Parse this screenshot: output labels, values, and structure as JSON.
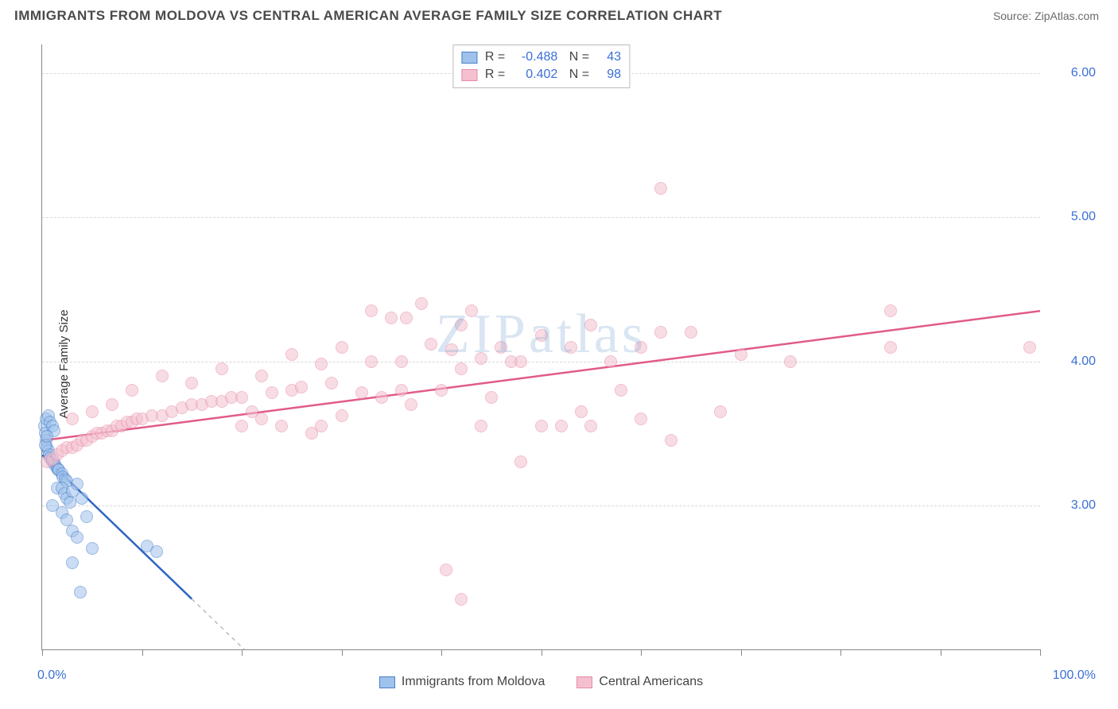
{
  "title": "IMMIGRANTS FROM MOLDOVA VS CENTRAL AMERICAN AVERAGE FAMILY SIZE CORRELATION CHART",
  "source": "Source: ZipAtlas.com",
  "watermark": "ZIPatlas",
  "ylabel": "Average Family Size",
  "chart": {
    "type": "scatter",
    "xlim": [
      0,
      100
    ],
    "ylim": [
      2.0,
      6.2
    ],
    "xtick_positions": [
      0,
      10,
      20,
      30,
      40,
      50,
      60,
      70,
      80,
      90,
      100
    ],
    "ytick_labels": [
      "3.00",
      "4.00",
      "5.00",
      "6.00"
    ],
    "ytick_values": [
      3.0,
      4.0,
      5.0,
      6.0
    ],
    "x_axis_label_left": "0.0%",
    "x_axis_label_right": "100.0%",
    "grid_color": "#d8d8d8",
    "axis_color": "#888888",
    "label_color": "#3b6fd6",
    "background_color": "#ffffff",
    "marker_radius": 8,
    "marker_opacity": 0.55,
    "series": [
      {
        "name": "Immigrants from Moldova",
        "fill": "#9fc2ec",
        "stroke": "#4a7fc8",
        "trend_color": "#2f66c4",
        "R": "-0.488",
        "N": "43",
        "trend": {
          "x1": 0,
          "y1": 3.35,
          "x2": 15,
          "y2": 2.35,
          "dash_to_x": 24,
          "dash_to_y": 1.75
        },
        "points": [
          [
            0.2,
            3.55
          ],
          [
            0.3,
            3.5
          ],
          [
            0.4,
            3.45
          ],
          [
            0.5,
            3.4
          ],
          [
            0.6,
            3.38
          ],
          [
            0.7,
            3.35
          ],
          [
            0.8,
            3.33
          ],
          [
            1.0,
            3.3
          ],
          [
            1.2,
            3.3
          ],
          [
            1.3,
            3.28
          ],
          [
            1.5,
            3.26
          ],
          [
            1.6,
            3.25
          ],
          [
            1.7,
            3.25
          ],
          [
            2.0,
            3.22
          ],
          [
            2.1,
            3.2
          ],
          [
            2.3,
            3.18
          ],
          [
            2.5,
            3.17
          ],
          [
            0.4,
            3.6
          ],
          [
            0.6,
            3.62
          ],
          [
            0.8,
            3.58
          ],
          [
            1.0,
            3.55
          ],
          [
            1.2,
            3.52
          ],
          [
            0.3,
            3.42
          ],
          [
            0.5,
            3.48
          ],
          [
            1.5,
            3.12
          ],
          [
            2.0,
            3.12
          ],
          [
            2.2,
            3.08
          ],
          [
            2.5,
            3.05
          ],
          [
            2.8,
            3.02
          ],
          [
            3.0,
            3.1
          ],
          [
            3.5,
            3.15
          ],
          [
            4.0,
            3.05
          ],
          [
            1.0,
            3.0
          ],
          [
            2.0,
            2.95
          ],
          [
            2.5,
            2.9
          ],
          [
            3.0,
            2.82
          ],
          [
            3.5,
            2.78
          ],
          [
            4.5,
            2.92
          ],
          [
            5.0,
            2.7
          ],
          [
            3.0,
            2.6
          ],
          [
            10.5,
            2.72
          ],
          [
            11.5,
            2.68
          ],
          [
            3.8,
            2.4
          ]
        ]
      },
      {
        "name": "Central Americans",
        "fill": "#f4c0cf",
        "stroke": "#e68ba6",
        "trend_color": "#e15a8a",
        "R": "0.402",
        "N": "98",
        "trend": {
          "x1": 0,
          "y1": 3.45,
          "x2": 100,
          "y2": 4.35
        },
        "points": [
          [
            0.5,
            3.3
          ],
          [
            1.0,
            3.32
          ],
          [
            1.5,
            3.35
          ],
          [
            2.0,
            3.38
          ],
          [
            2.5,
            3.4
          ],
          [
            3.0,
            3.4
          ],
          [
            3.5,
            3.42
          ],
          [
            4.0,
            3.45
          ],
          [
            4.5,
            3.45
          ],
          [
            5.0,
            3.48
          ],
          [
            5.5,
            3.5
          ],
          [
            6.0,
            3.5
          ],
          [
            6.5,
            3.52
          ],
          [
            7.0,
            3.52
          ],
          [
            7.5,
            3.55
          ],
          [
            8.0,
            3.55
          ],
          [
            8.5,
            3.58
          ],
          [
            9.0,
            3.58
          ],
          [
            9.5,
            3.6
          ],
          [
            10.0,
            3.6
          ],
          [
            11.0,
            3.62
          ],
          [
            12.0,
            3.62
          ],
          [
            13.0,
            3.65
          ],
          [
            14.0,
            3.68
          ],
          [
            15.0,
            3.7
          ],
          [
            16.0,
            3.7
          ],
          [
            17.0,
            3.72
          ],
          [
            18.0,
            3.72
          ],
          [
            19.0,
            3.75
          ],
          [
            20.0,
            3.75
          ],
          [
            21.0,
            3.65
          ],
          [
            22.0,
            3.6
          ],
          [
            23.0,
            3.78
          ],
          [
            24.0,
            3.55
          ],
          [
            25.0,
            3.8
          ],
          [
            26.0,
            3.82
          ],
          [
            27.0,
            3.5
          ],
          [
            28.0,
            3.55
          ],
          [
            29.0,
            3.85
          ],
          [
            30.0,
            3.62
          ],
          [
            3.0,
            3.6
          ],
          [
            5.0,
            3.65
          ],
          [
            7.0,
            3.7
          ],
          [
            9.0,
            3.8
          ],
          [
            12.0,
            3.9
          ],
          [
            15.0,
            3.85
          ],
          [
            18.0,
            3.95
          ],
          [
            20.0,
            3.55
          ],
          [
            22.0,
            3.9
          ],
          [
            25.0,
            4.05
          ],
          [
            28.0,
            3.98
          ],
          [
            30.0,
            4.1
          ],
          [
            32.0,
            3.78
          ],
          [
            33.0,
            4.0
          ],
          [
            34.0,
            3.75
          ],
          [
            35.0,
            4.3
          ],
          [
            36.0,
            4.0
          ],
          [
            37.0,
            3.7
          ],
          [
            38.0,
            4.4
          ],
          [
            39.0,
            4.12
          ],
          [
            40.0,
            3.8
          ],
          [
            41.0,
            4.08
          ],
          [
            42.0,
            3.95
          ],
          [
            43.0,
            4.35
          ],
          [
            44.0,
            4.02
          ],
          [
            45.0,
            3.75
          ],
          [
            46.0,
            4.1
          ],
          [
            47.0,
            4.0
          ],
          [
            48.0,
            3.3
          ],
          [
            50.0,
            4.18
          ],
          [
            52.0,
            3.55
          ],
          [
            53.0,
            4.1
          ],
          [
            54.0,
            3.65
          ],
          [
            55.0,
            4.25
          ],
          [
            57.0,
            4.0
          ],
          [
            58.0,
            3.8
          ],
          [
            60.0,
            3.6
          ],
          [
            62.0,
            5.2
          ],
          [
            62.0,
            4.2
          ],
          [
            63.0,
            3.45
          ],
          [
            65.0,
            4.2
          ],
          [
            68.0,
            3.65
          ],
          [
            70.0,
            4.05
          ],
          [
            75.0,
            4.0
          ],
          [
            85.0,
            4.35
          ],
          [
            36.0,
            3.8
          ],
          [
            42.0,
            4.25
          ],
          [
            48.0,
            4.0
          ],
          [
            40.5,
            2.55
          ],
          [
            42.0,
            2.35
          ],
          [
            44.0,
            3.55
          ],
          [
            50.0,
            3.55
          ],
          [
            55.0,
            3.55
          ],
          [
            60.0,
            4.1
          ],
          [
            85.0,
            4.1
          ],
          [
            99.0,
            4.1
          ],
          [
            33.0,
            4.35
          ],
          [
            36.5,
            4.3
          ]
        ]
      }
    ]
  }
}
